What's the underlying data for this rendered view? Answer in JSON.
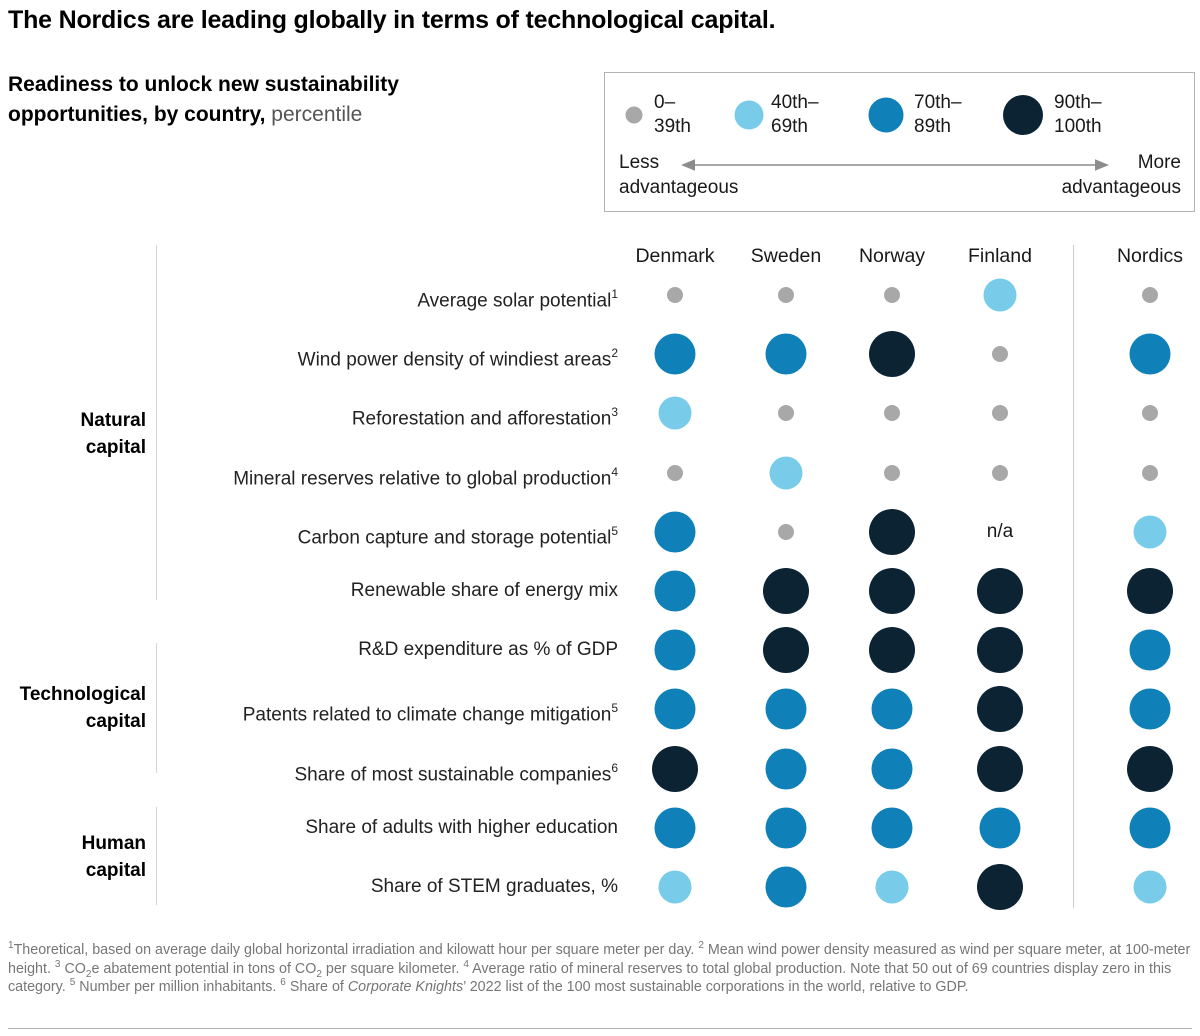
{
  "title": "The Nordics are leading globally in terms of technological capital.",
  "subtitle": {
    "bold": "Readiness to unlock new sustainability opportunities, by country,",
    "unit": " percentile"
  },
  "na_label": "n/a",
  "colors": {
    "0-39": "#a8a8a8",
    "40-69": "#79cce9",
    "70-89": "#1081b8",
    "90-100": "#0b2332",
    "text": "#191919",
    "footnote": "#767676"
  },
  "legend": {
    "items": [
      {
        "band": "0-39",
        "line1": "0–",
        "line2": "39th"
      },
      {
        "band": "40-69",
        "line1": "40th–",
        "line2": "69th"
      },
      {
        "band": "70-89",
        "line1": "70th–",
        "line2": "89th"
      },
      {
        "band": "90-100",
        "line1": "90th–",
        "line2": "100th"
      }
    ],
    "less_line1": "Less",
    "less_line2": "advantageous",
    "more_line1": "More",
    "more_line2": "advantageous"
  },
  "chart_data": {
    "type": "heatmap",
    "title": "Readiness to unlock new sustainability opportunities, by country, percentile",
    "value_scale": "percentile bands: 0–39th, 40th–69th, 70th–89th, 90th–100th; larger/darker dot = more advantageous",
    "legend_position": "top-right",
    "columns": [
      "Denmark",
      "Sweden",
      "Norway",
      "Finland"
    ],
    "summary_column": "Nordics",
    "groups": [
      {
        "label_line1": "Natural",
        "label_line2": "capital",
        "row_start": 0,
        "row_end": 5
      },
      {
        "label_line1": "Technological",
        "label_line2": "capital",
        "row_start": 6,
        "row_end": 8
      },
      {
        "label_line1": "Human",
        "label_line2": "capital",
        "row_start": 9,
        "row_end": 10
      }
    ],
    "rows": [
      {
        "label": "Average solar potential",
        "sup": "1",
        "values": [
          "0-39",
          "0-39",
          "0-39",
          "40-69"
        ],
        "nordics": "0-39"
      },
      {
        "label": "Wind power density of windiest areas",
        "sup": "2",
        "values": [
          "70-89",
          "70-89",
          "90-100",
          "0-39"
        ],
        "nordics": "70-89"
      },
      {
        "label": "Reforestation and afforestation",
        "sup": "3",
        "values": [
          "40-69",
          "0-39",
          "0-39",
          "0-39"
        ],
        "nordics": "0-39"
      },
      {
        "label": "Mineral reserves relative to global production",
        "sup": "4",
        "values": [
          "0-39",
          "40-69",
          "0-39",
          "0-39"
        ],
        "nordics": "0-39"
      },
      {
        "label": "Carbon capture and storage potential",
        "sup": "5",
        "values": [
          "70-89",
          "0-39",
          "90-100",
          "n/a"
        ],
        "nordics": "40-69"
      },
      {
        "label": "Renewable share of energy mix",
        "sup": "",
        "values": [
          "70-89",
          "90-100",
          "90-100",
          "90-100"
        ],
        "nordics": "90-100"
      },
      {
        "label": "R&D expenditure as % of GDP",
        "sup": "",
        "values": [
          "70-89",
          "90-100",
          "90-100",
          "90-100"
        ],
        "nordics": "70-89"
      },
      {
        "label": "Patents related to climate change mitigation",
        "sup": "5",
        "values": [
          "70-89",
          "70-89",
          "70-89",
          "90-100"
        ],
        "nordics": "70-89"
      },
      {
        "label": "Share of most sustainable companies",
        "sup": "6",
        "values": [
          "90-100",
          "70-89",
          "70-89",
          "90-100"
        ],
        "nordics": "90-100"
      },
      {
        "label": "Share of adults with higher education",
        "sup": "",
        "values": [
          "70-89",
          "70-89",
          "70-89",
          "70-89"
        ],
        "nordics": "70-89"
      },
      {
        "label": "Share of STEM graduates, %",
        "sup": "",
        "values": [
          "40-69",
          "70-89",
          "40-69",
          "90-100"
        ],
        "nordics": "40-69"
      }
    ]
  },
  "footnote": {
    "f1_sup": "1",
    "f1": "Theoretical, based on average daily global horizontal irradiation and kilowatt hour per square meter per day. ",
    "f2_sup": "2",
    "f2": " Mean wind power density measured as wind per square meter, at 100-meter height. ",
    "f3_sup": "3",
    "f3a": " CO",
    "f3_sub1": "2",
    "f3b": "e abatement potential in tons of CO",
    "f3_sub2": "2",
    "f3c": " per square kilometer. ",
    "f4_sup": "4",
    "f4": " Average ratio of mineral reserves to total global production. Note that 50 out of 69 countries display zero in this category. ",
    "f5_sup": "5",
    "f5": " Number per million inhabitants. ",
    "f6_sup": "6",
    "f6a": " Share of ",
    "f6_italic": "Corporate Knights",
    "f6b": "’ 2022 list of the 100 most sustainable corporations in the world, relative to GDP."
  }
}
